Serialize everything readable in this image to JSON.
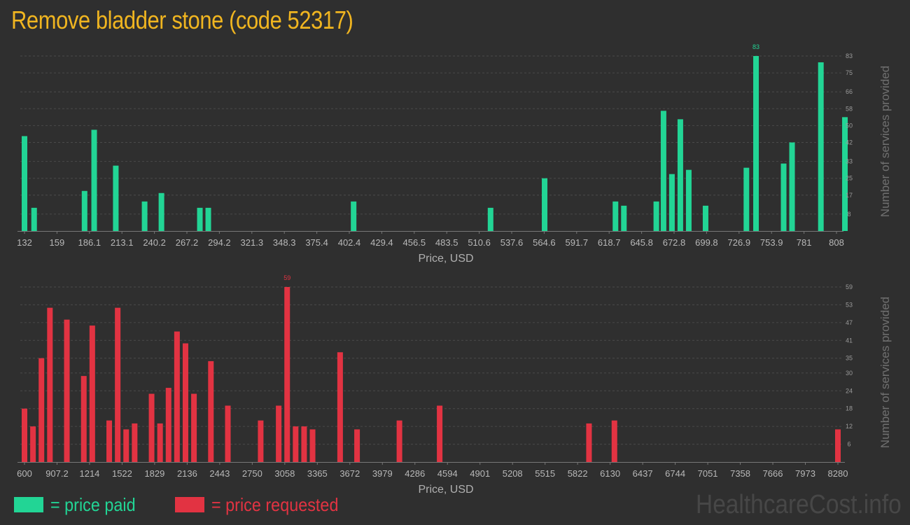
{
  "title": "Remove bladder stone (code 52317)",
  "colors": {
    "paid": "#22d595",
    "requested": "#e23342",
    "title": "#f0b520"
  },
  "legend": {
    "paid": "= price paid",
    "requested": "= price requested"
  },
  "watermark": "HealthcareCost.info",
  "chart_data": [
    {
      "type": "bar",
      "name": "price paid",
      "color": "#22d595",
      "xlabel": "Price, USD",
      "ylabel": "Number of services provided",
      "x_tick_labels": [
        "132",
        "159",
        "186.1",
        "213.1",
        "240.2",
        "267.2",
        "294.2",
        "321.3",
        "348.3",
        "375.4",
        "402.4",
        "429.4",
        "456.5",
        "483.5",
        "510.6",
        "537.6",
        "564.6",
        "591.7",
        "618.7",
        "645.8",
        "672.8",
        "699.8",
        "726.9",
        "753.9",
        "781",
        "808"
      ],
      "y_tick_labels": [
        "8",
        "17",
        "25",
        "33",
        "42",
        "50",
        "58",
        "66",
        "75",
        "83"
      ],
      "ylim": [
        0,
        83
      ],
      "xlim": [
        132,
        808
      ],
      "peak_label": "83",
      "bars": [
        {
          "x": 132,
          "y": 45
        },
        {
          "x": 140,
          "y": 11
        },
        {
          "x": 182,
          "y": 19
        },
        {
          "x": 190,
          "y": 48
        },
        {
          "x": 208,
          "y": 31
        },
        {
          "x": 232,
          "y": 14
        },
        {
          "x": 246,
          "y": 18
        },
        {
          "x": 278,
          "y": 11
        },
        {
          "x": 285,
          "y": 11
        },
        {
          "x": 406,
          "y": 14
        },
        {
          "x": 520,
          "y": 11
        },
        {
          "x": 565,
          "y": 25
        },
        {
          "x": 624,
          "y": 14
        },
        {
          "x": 631,
          "y": 12
        },
        {
          "x": 658,
          "y": 14
        },
        {
          "x": 664,
          "y": 57
        },
        {
          "x": 671,
          "y": 27
        },
        {
          "x": 678,
          "y": 53
        },
        {
          "x": 685,
          "y": 29
        },
        {
          "x": 699,
          "y": 12
        },
        {
          "x": 733,
          "y": 30
        },
        {
          "x": 741,
          "y": 83
        },
        {
          "x": 764,
          "y": 32
        },
        {
          "x": 771,
          "y": 42
        },
        {
          "x": 795,
          "y": 80
        },
        {
          "x": 815,
          "y": 54
        }
      ]
    },
    {
      "type": "bar",
      "name": "price requested",
      "color": "#e23342",
      "xlabel": "Price, USD",
      "ylabel": "Number of services provided",
      "x_tick_labels": [
        "600",
        "907.2",
        "1214",
        "1522",
        "1829",
        "2136",
        "2443",
        "2750",
        "3058",
        "3365",
        "3672",
        "3979",
        "4286",
        "4594",
        "4901",
        "5208",
        "5515",
        "5822",
        "6130",
        "6437",
        "6744",
        "7051",
        "7358",
        "7666",
        "7973",
        "8280"
      ],
      "y_tick_labels": [
        "6",
        "12",
        "18",
        "24",
        "30",
        "35",
        "41",
        "47",
        "53",
        "59"
      ],
      "ylim": [
        0,
        59
      ],
      "xlim": [
        600,
        8280
      ],
      "peak_label": "59",
      "bars": [
        {
          "x": 600,
          "y": 18
        },
        {
          "x": 680,
          "y": 12
        },
        {
          "x": 760,
          "y": 35
        },
        {
          "x": 840,
          "y": 52
        },
        {
          "x": 1000,
          "y": 48
        },
        {
          "x": 1160,
          "y": 29
        },
        {
          "x": 1240,
          "y": 46
        },
        {
          "x": 1400,
          "y": 14
        },
        {
          "x": 1480,
          "y": 52
        },
        {
          "x": 1560,
          "y": 11
        },
        {
          "x": 1640,
          "y": 13
        },
        {
          "x": 1800,
          "y": 23
        },
        {
          "x": 1880,
          "y": 13
        },
        {
          "x": 1960,
          "y": 25
        },
        {
          "x": 2040,
          "y": 44
        },
        {
          "x": 2120,
          "y": 40
        },
        {
          "x": 2200,
          "y": 23
        },
        {
          "x": 2360,
          "y": 34
        },
        {
          "x": 2520,
          "y": 19
        },
        {
          "x": 2830,
          "y": 14
        },
        {
          "x": 3000,
          "y": 19
        },
        {
          "x": 3080,
          "y": 59
        },
        {
          "x": 3160,
          "y": 12
        },
        {
          "x": 3240,
          "y": 12
        },
        {
          "x": 3320,
          "y": 11
        },
        {
          "x": 3580,
          "y": 37
        },
        {
          "x": 3740,
          "y": 11
        },
        {
          "x": 4140,
          "y": 14
        },
        {
          "x": 4520,
          "y": 19
        },
        {
          "x": 5930,
          "y": 13
        },
        {
          "x": 6170,
          "y": 14
        },
        {
          "x": 8280,
          "y": 11
        }
      ]
    }
  ]
}
